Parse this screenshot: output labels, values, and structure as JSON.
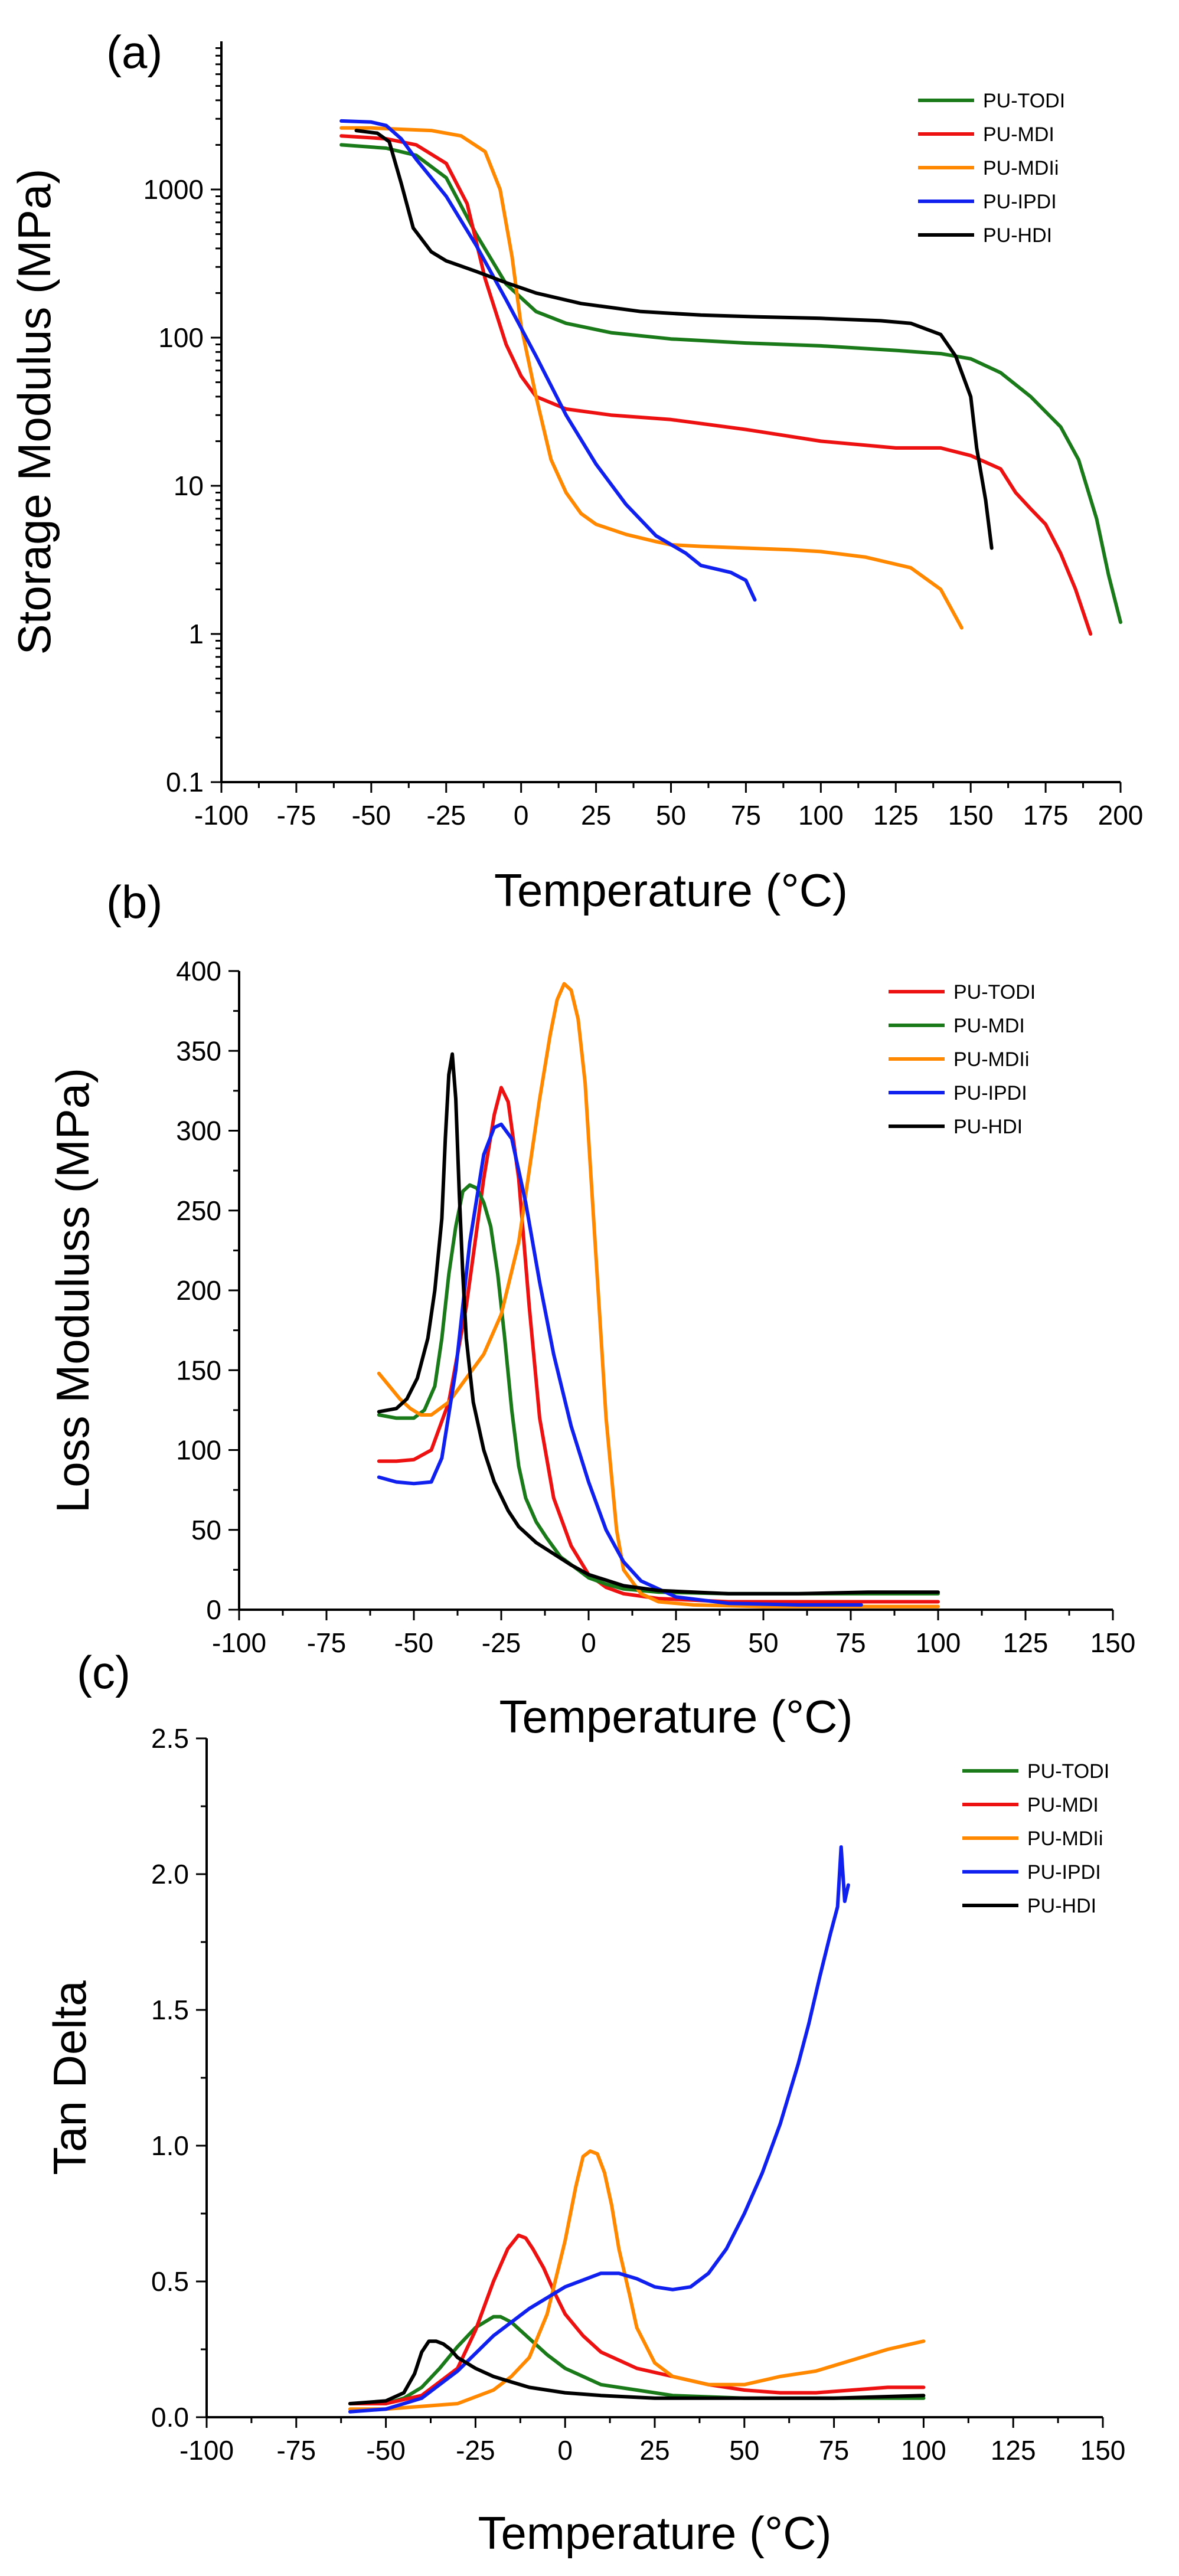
{
  "colors": {
    "green": "#1a7a1a",
    "red": "#ee1111",
    "orange": "#ff8800",
    "blue": "#1020ee",
    "black": "#000000"
  },
  "chart_data": [
    {
      "type": "line",
      "panel_label": "(a)",
      "xlabel": "Temperature (°C)",
      "ylabel": "Storage Modulus (MPa)",
      "xlim": [
        -100,
        200
      ],
      "ylim": [
        0.1,
        10000
      ],
      "yscale": "log",
      "xticks": [
        -100,
        -75,
        -50,
        -25,
        0,
        25,
        50,
        75,
        100,
        125,
        150,
        175,
        200
      ],
      "yticks": [
        0.1,
        1,
        10,
        100,
        1000
      ],
      "ytick_labels": [
        "0.1",
        "1",
        "10",
        "100",
        "1000"
      ],
      "legend_position": "top-right",
      "series": [
        {
          "name": "PU-TODI",
          "color": "#1a7a1a",
          "x": [
            -60,
            -45,
            -35,
            -25,
            -15,
            -5,
            5,
            15,
            30,
            50,
            75,
            100,
            125,
            140,
            150,
            160,
            170,
            180,
            186,
            192,
            196,
            200
          ],
          "y": [
            2000,
            1900,
            1700,
            1200,
            500,
            230,
            150,
            125,
            108,
            98,
            92,
            88,
            82,
            78,
            72,
            58,
            40,
            25,
            15,
            6,
            2.5,
            1.2
          ]
        },
        {
          "name": "PU-MDI",
          "color": "#ee1111",
          "x": [
            -60,
            -45,
            -35,
            -25,
            -18,
            -12,
            -5,
            0,
            5,
            15,
            30,
            50,
            75,
            100,
            125,
            140,
            150,
            160,
            165,
            170,
            175,
            180,
            185,
            190
          ],
          "y": [
            2300,
            2200,
            2000,
            1500,
            800,
            250,
            90,
            55,
            40,
            33,
            30,
            28,
            24,
            20,
            18,
            18,
            16,
            13,
            9,
            7,
            5.5,
            3.5,
            2.0,
            1.0
          ]
        },
        {
          "name": "PU-MDIi",
          "color": "#ff8800",
          "x": [
            -60,
            -50,
            -40,
            -30,
            -20,
            -12,
            -7,
            -3,
            0,
            5,
            10,
            15,
            20,
            25,
            35,
            45,
            50,
            60,
            75,
            90,
            100,
            115,
            130,
            140,
            147
          ],
          "y": [
            2600,
            2600,
            2550,
            2500,
            2300,
            1800,
            1000,
            350,
            120,
            40,
            15,
            9,
            6.5,
            5.5,
            4.7,
            4.2,
            4.0,
            3.9,
            3.8,
            3.7,
            3.6,
            3.3,
            2.8,
            2.0,
            1.1
          ]
        },
        {
          "name": "PU-IPDI",
          "color": "#1020ee",
          "x": [
            -60,
            -50,
            -45,
            -40,
            -35,
            -25,
            -15,
            -5,
            5,
            15,
            25,
            35,
            45,
            55,
            60,
            70,
            75,
            78
          ],
          "y": [
            2900,
            2850,
            2700,
            2200,
            1600,
            900,
            420,
            180,
            75,
            30,
            14,
            7.5,
            4.6,
            3.5,
            2.9,
            2.6,
            2.3,
            1.7
          ]
        },
        {
          "name": "PU-HDI",
          "color": "#000000",
          "x": [
            -55,
            -48,
            -44,
            -40,
            -36,
            -30,
            -25,
            -15,
            -5,
            5,
            20,
            40,
            60,
            80,
            100,
            120,
            130,
            140,
            145,
            150,
            152,
            155,
            157
          ],
          "y": [
            2500,
            2400,
            2100,
            1100,
            550,
            380,
            330,
            280,
            235,
            200,
            170,
            150,
            142,
            138,
            135,
            130,
            125,
            105,
            75,
            40,
            18,
            8,
            3.8
          ]
        }
      ]
    },
    {
      "type": "line",
      "panel_label": "(b)",
      "xlabel": "Temperature (°C)",
      "ylabel": "Loss Moduluss (MPa)",
      "xlim": [
        -100,
        150
      ],
      "ylim": [
        0,
        400
      ],
      "xticks": [
        -100,
        -75,
        -50,
        -25,
        0,
        25,
        50,
        75,
        100,
        125,
        150
      ],
      "yticks": [
        0,
        50,
        100,
        150,
        200,
        250,
        300,
        350,
        400
      ],
      "legend_position": "top-right",
      "series": [
        {
          "name": "PU-TODI",
          "color": "#ee1111",
          "x": [
            -60,
            -55,
            -50,
            -45,
            -40,
            -35,
            -30,
            -27,
            -25,
            -23,
            -20,
            -17,
            -14,
            -10,
            -5,
            0,
            5,
            10,
            20,
            40,
            70,
            100
          ],
          "y": [
            93,
            93,
            94,
            100,
            130,
            190,
            270,
            310,
            327,
            318,
            270,
            190,
            120,
            70,
            40,
            22,
            14,
            10,
            7,
            5,
            5,
            5
          ]
        },
        {
          "name": "PU-MDI",
          "color": "#1a7a1a",
          "x": [
            -60,
            -55,
            -50,
            -47,
            -44,
            -42,
            -40,
            -38,
            -36,
            -34,
            -32,
            -30,
            -28,
            -26,
            -24,
            -22,
            -20,
            -18,
            -15,
            -12,
            -8,
            -3,
            0,
            5,
            10,
            20,
            40,
            70,
            100
          ],
          "y": [
            122,
            120,
            120,
            125,
            140,
            170,
            210,
            240,
            262,
            266,
            264,
            255,
            240,
            210,
            170,
            125,
            90,
            70,
            55,
            45,
            33,
            25,
            20,
            16,
            13,
            11,
            10,
            10,
            10
          ]
        },
        {
          "name": "PU-MDIi",
          "color": "#ff8800",
          "x": [
            -60,
            -57,
            -54,
            -51,
            -48,
            -45,
            -40,
            -35,
            -30,
            -25,
            -20,
            -17,
            -14,
            -11,
            -9,
            -7,
            -5,
            -3,
            -1,
            1,
            3,
            5,
            8,
            10,
            15,
            20,
            30,
            50,
            70,
            100
          ],
          "y": [
            148,
            140,
            132,
            126,
            122,
            122,
            130,
            145,
            160,
            185,
            230,
            275,
            320,
            360,
            382,
            392,
            388,
            370,
            330,
            260,
            190,
            120,
            50,
            25,
            10,
            5,
            3,
            2,
            2,
            2
          ]
        },
        {
          "name": "PU-IPDI",
          "color": "#1020ee",
          "x": [
            -60,
            -55,
            -50,
            -45,
            -42,
            -38,
            -34,
            -30,
            -27,
            -25,
            -22,
            -18,
            -14,
            -10,
            -5,
            0,
            5,
            10,
            15,
            25,
            40,
            60,
            78
          ],
          "y": [
            83,
            80,
            79,
            80,
            95,
            150,
            230,
            285,
            302,
            304,
            295,
            255,
            205,
            160,
            115,
            80,
            50,
            30,
            18,
            8,
            4,
            3,
            3
          ]
        },
        {
          "name": "PU-HDI",
          "color": "#000000",
          "x": [
            -60,
            -55,
            -52,
            -49,
            -46,
            -44,
            -42,
            -41,
            -40,
            -39,
            -38,
            -37,
            -36,
            -35,
            -33,
            -30,
            -27,
            -23,
            -20,
            -15,
            -10,
            -5,
            0,
            10,
            20,
            40,
            60,
            80,
            100
          ],
          "y": [
            124,
            126,
            132,
            145,
            170,
            200,
            245,
            295,
            335,
            348,
            320,
            260,
            210,
            170,
            130,
            100,
            80,
            62,
            52,
            42,
            35,
            28,
            22,
            15,
            12,
            10,
            10,
            11,
            11
          ]
        }
      ]
    },
    {
      "type": "line",
      "panel_label": "(c)",
      "xlabel": "Temperature (°C)",
      "ylabel": "Tan Delta",
      "xlim": [
        -100,
        150
      ],
      "ylim": [
        0,
        2.5
      ],
      "xticks": [
        -100,
        -75,
        -50,
        -25,
        0,
        25,
        50,
        75,
        100,
        125,
        150
      ],
      "yticks": [
        0.0,
        0.5,
        1.0,
        1.5,
        2.0,
        2.5
      ],
      "ytick_labels": [
        "0.0",
        "0.5",
        "1.0",
        "1.5",
        "2.0",
        "2.5"
      ],
      "legend_position": "top-right",
      "series": [
        {
          "name": "PU-TODI",
          "color": "#1a7a1a",
          "x": [
            -60,
            -50,
            -45,
            -40,
            -35,
            -30,
            -25,
            -20,
            -18,
            -15,
            -10,
            -5,
            0,
            5,
            10,
            20,
            30,
            50,
            75,
            100
          ],
          "y": [
            0.05,
            0.05,
            0.07,
            0.11,
            0.18,
            0.26,
            0.33,
            0.37,
            0.37,
            0.35,
            0.29,
            0.23,
            0.18,
            0.15,
            0.12,
            0.1,
            0.08,
            0.07,
            0.07,
            0.07
          ]
        },
        {
          "name": "PU-MDI",
          "color": "#ee1111",
          "x": [
            -60,
            -50,
            -40,
            -30,
            -25,
            -20,
            -16,
            -13,
            -11,
            -9,
            -6,
            -3,
            0,
            5,
            10,
            15,
            20,
            30,
            40,
            50,
            60,
            70,
            80,
            90,
            100
          ],
          "y": [
            0.05,
            0.05,
            0.08,
            0.18,
            0.32,
            0.5,
            0.62,
            0.67,
            0.66,
            0.62,
            0.55,
            0.46,
            0.38,
            0.3,
            0.24,
            0.21,
            0.18,
            0.15,
            0.12,
            0.1,
            0.09,
            0.09,
            0.1,
            0.11,
            0.11
          ]
        },
        {
          "name": "PU-MDIi",
          "color": "#ff8800",
          "x": [
            -60,
            -50,
            -40,
            -30,
            -20,
            -15,
            -10,
            -5,
            0,
            3,
            5,
            7,
            9,
            11,
            13,
            15,
            18,
            20,
            25,
            30,
            40,
            50,
            60,
            70,
            80,
            90,
            100
          ],
          "y": [
            0.03,
            0.03,
            0.04,
            0.05,
            0.1,
            0.15,
            0.22,
            0.38,
            0.65,
            0.85,
            0.96,
            0.98,
            0.97,
            0.9,
            0.78,
            0.62,
            0.45,
            0.33,
            0.2,
            0.15,
            0.12,
            0.12,
            0.15,
            0.17,
            0.21,
            0.25,
            0.28
          ]
        },
        {
          "name": "PU-IPDI",
          "color": "#1020ee",
          "x": [
            -60,
            -50,
            -40,
            -30,
            -20,
            -10,
            0,
            10,
            15,
            20,
            25,
            30,
            35,
            40,
            45,
            50,
            55,
            60,
            65,
            68,
            71,
            74,
            76,
            77,
            78,
            79
          ],
          "y": [
            0.02,
            0.03,
            0.07,
            0.17,
            0.3,
            0.4,
            0.48,
            0.53,
            0.53,
            0.51,
            0.48,
            0.47,
            0.48,
            0.53,
            0.62,
            0.75,
            0.9,
            1.08,
            1.3,
            1.45,
            1.62,
            1.78,
            1.88,
            2.1,
            1.9,
            1.96
          ]
        },
        {
          "name": "PU-HDI",
          "color": "#000000",
          "x": [
            -60,
            -50,
            -45,
            -42,
            -40,
            -38,
            -36,
            -34,
            -32,
            -30,
            -25,
            -20,
            -15,
            -10,
            0,
            10,
            25,
            50,
            75,
            100
          ],
          "y": [
            0.05,
            0.06,
            0.09,
            0.16,
            0.24,
            0.28,
            0.28,
            0.27,
            0.25,
            0.22,
            0.18,
            0.15,
            0.13,
            0.11,
            0.09,
            0.08,
            0.07,
            0.07,
            0.07,
            0.08
          ]
        }
      ]
    }
  ]
}
